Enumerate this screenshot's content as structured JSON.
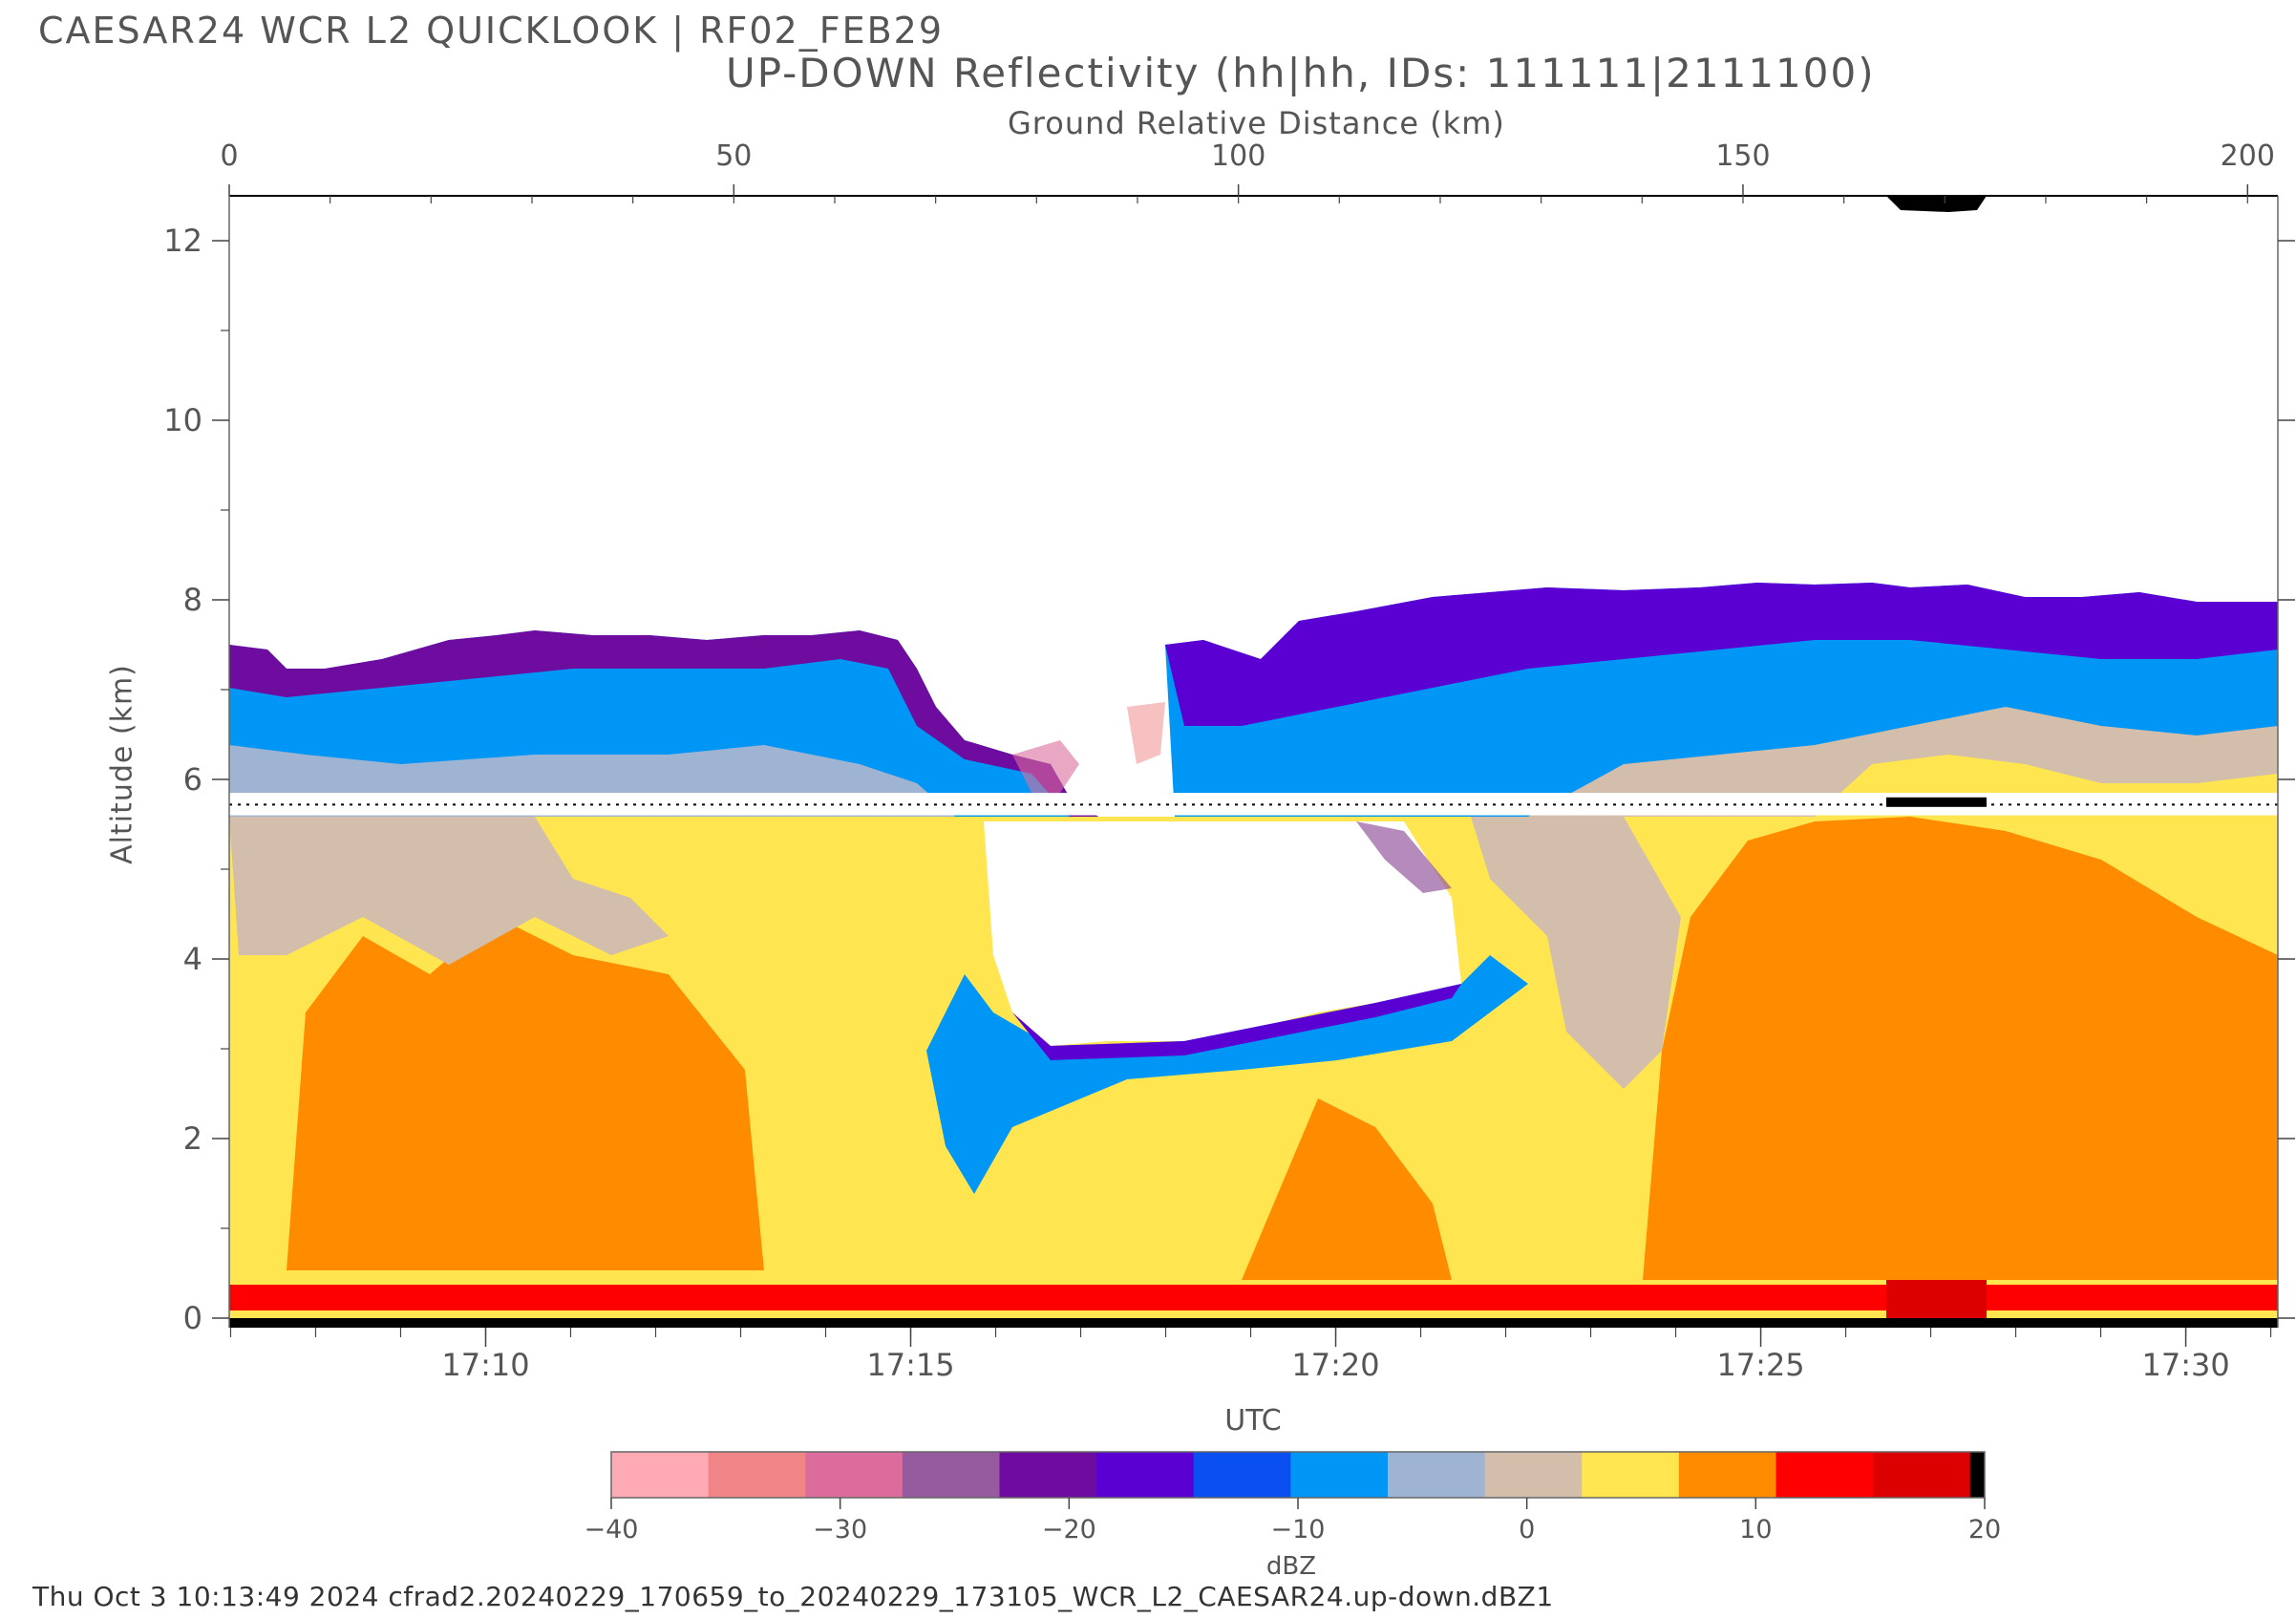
{
  "chart_data": {
    "type": "heatmap",
    "title": "CAESAR24 WCR L2 QUICKLOOK | RF02_FEB29",
    "subtitle": "UP-DOWN Reflectivity (hh|hh, IDs: 111111|2111100)",
    "xlabel_top": "Ground Relative Distance (km)",
    "xlabel": "UTC",
    "ylabel": "Altitude (km)",
    "top_axis": {
      "range": [
        0,
        203
      ],
      "ticks": [
        0,
        50,
        100,
        150,
        200
      ]
    },
    "time_axis": {
      "range": [
        "17:06:59",
        "17:31:05"
      ],
      "ticks": [
        "17:10",
        "17:15",
        "17:20",
        "17:25",
        "17:30"
      ]
    },
    "y_axis": {
      "range": [
        0,
        12.5
      ],
      "ticks": [
        0,
        2,
        4,
        6,
        8,
        10,
        12
      ]
    },
    "aircraft_altitude_km": 5.72,
    "colorbar": {
      "label": "dBZ",
      "range": [
        -40,
        20
      ],
      "tick_values": [
        -40,
        -30,
        -20,
        -10,
        0,
        10,
        20
      ],
      "tick_labels": [
        "−40",
        "−30",
        "−20",
        "−10",
        "0",
        "10",
        "20"
      ],
      "colors": [
        "#ffaab4",
        "#f08486",
        "#dc6c9c",
        "#965a9e",
        "#6e0ca0",
        "#5a00d2",
        "#0a50f0",
        "#0096f5",
        "#9eb4d2",
        "#d2beaa",
        "#ffe650",
        "#ff8c00",
        "#ff0000",
        "#dc0000",
        "#000000"
      ]
    }
  },
  "footer": "Thu Oct  3 10:13:49 2024 cfrad2.20240229_170659_to_20240229_173105_WCR_L2_CAESAR24.up-down.dBZ1"
}
